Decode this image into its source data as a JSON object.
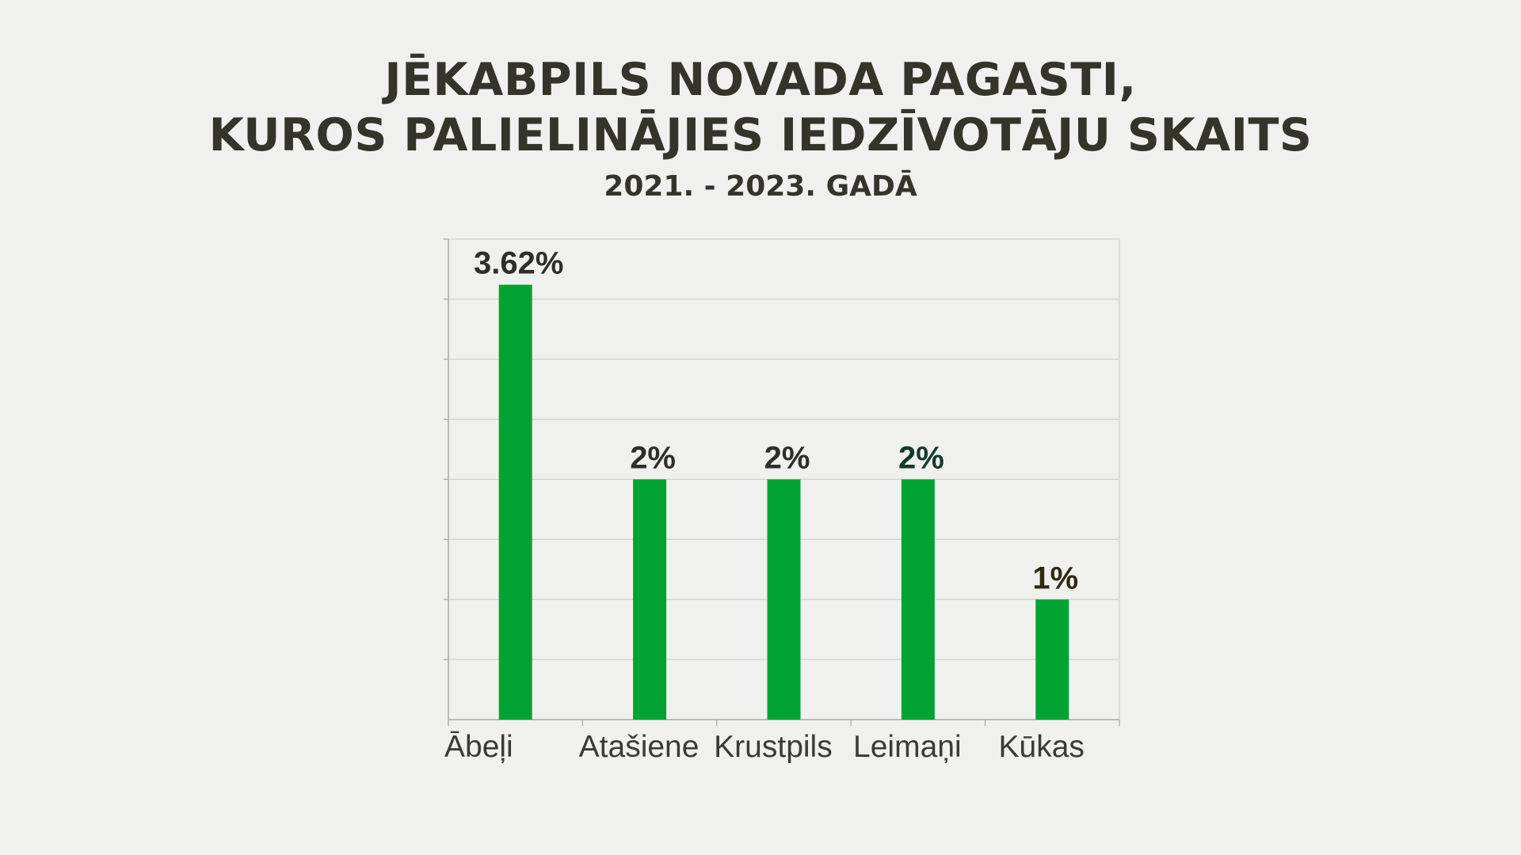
{
  "chart_data": {
    "type": "bar",
    "title_lines": [
      "JĒKABPILS NOVADA PAGASTI,",
      "KUROS PALIELINĀJIES IEDZĪVOTĀJU SKAITS"
    ],
    "subtitle": "2021. - 2023. GADĀ",
    "categories": [
      "Ābeļi",
      "Atašiene",
      "Krustpils",
      "Leimaņi",
      "Kūkas"
    ],
    "values": [
      3.62,
      2,
      2,
      2,
      1
    ],
    "data_labels": [
      "3.62%",
      "2%",
      "2%",
      "2%",
      "1%"
    ],
    "data_label_colors": [
      "#2e2e2e",
      "#2e2e2e",
      "#2e2e2e",
      "#123a2c",
      "#2e2a10"
    ],
    "ylim": [
      0,
      4
    ],
    "grid": true,
    "bar_color": "#00a331",
    "title_color": "#34342a"
  }
}
